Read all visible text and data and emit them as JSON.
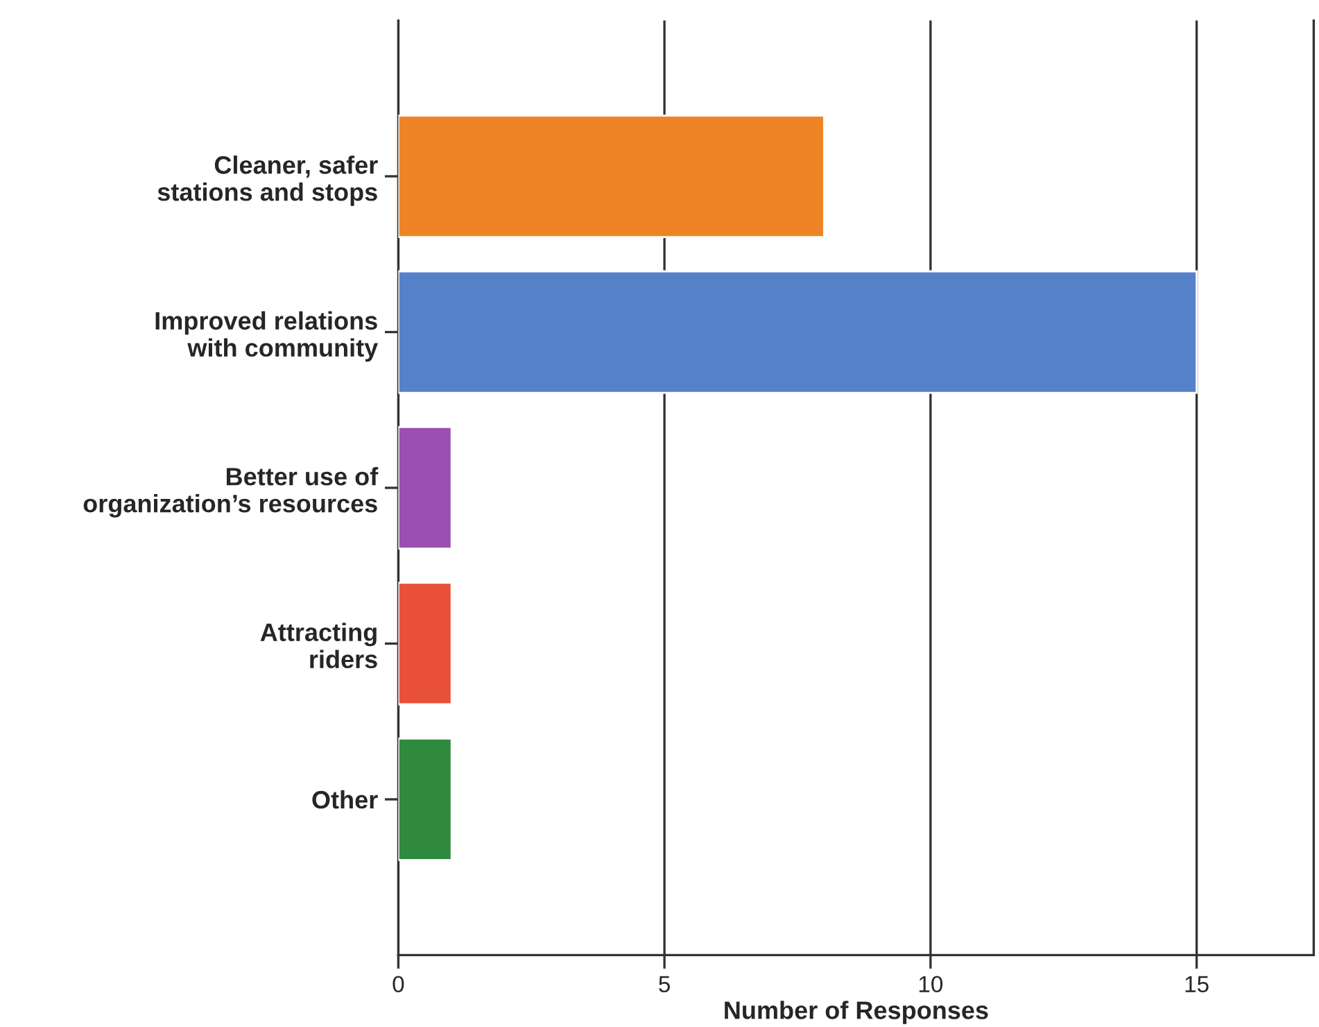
{
  "chart_data": {
    "type": "bar",
    "orientation": "horizontal",
    "categories": [
      "Cleaner, safer\nstations and stops",
      "Improved relations\nwith community",
      "Better use of\norganization’s resources",
      "Attracting\nriders",
      "Other"
    ],
    "values": [
      8,
      15,
      1,
      1,
      1
    ],
    "colors": [
      "#ee8426",
      "#5581c9",
      "#9a4fb3",
      "#e8503a",
      "#2f8a3f"
    ],
    "xlabel": "Number of Responses",
    "xlim": [
      0,
      17.2
    ],
    "xticks": [
      0,
      5,
      10,
      15
    ],
    "grid": "x",
    "legend": false
  }
}
